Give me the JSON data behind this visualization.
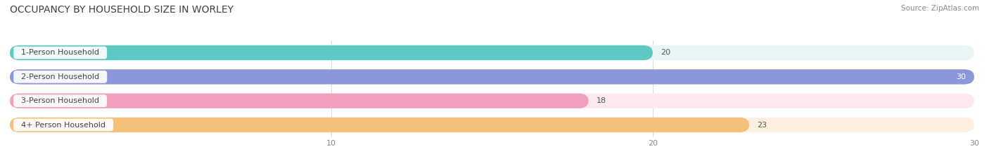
{
  "title": "OCCUPANCY BY HOUSEHOLD SIZE IN WORLEY",
  "source": "Source: ZipAtlas.com",
  "categories": [
    "1-Person Household",
    "2-Person Household",
    "3-Person Household",
    "4+ Person Household"
  ],
  "values": [
    20,
    30,
    18,
    23
  ],
  "bar_colors": [
    "#5ec8c2",
    "#8b97d8",
    "#f0a0bc",
    "#f5c07a"
  ],
  "bg_colors": [
    "#e8f5f5",
    "#ebebf5",
    "#fde8f0",
    "#fdf0e0"
  ],
  "value_label_colors": [
    "#555555",
    "#ffffff",
    "#555555",
    "#ffffff"
  ],
  "xlim": [
    0,
    30
  ],
  "xticks": [
    10,
    20,
    30
  ],
  "bar_height": 0.62,
  "bar_spacing": 1.0,
  "figsize": [
    14.06,
    2.33
  ],
  "dpi": 100,
  "title_fontsize": 10,
  "label_fontsize": 8,
  "value_fontsize": 8,
  "tick_fontsize": 8,
  "source_fontsize": 7.5
}
